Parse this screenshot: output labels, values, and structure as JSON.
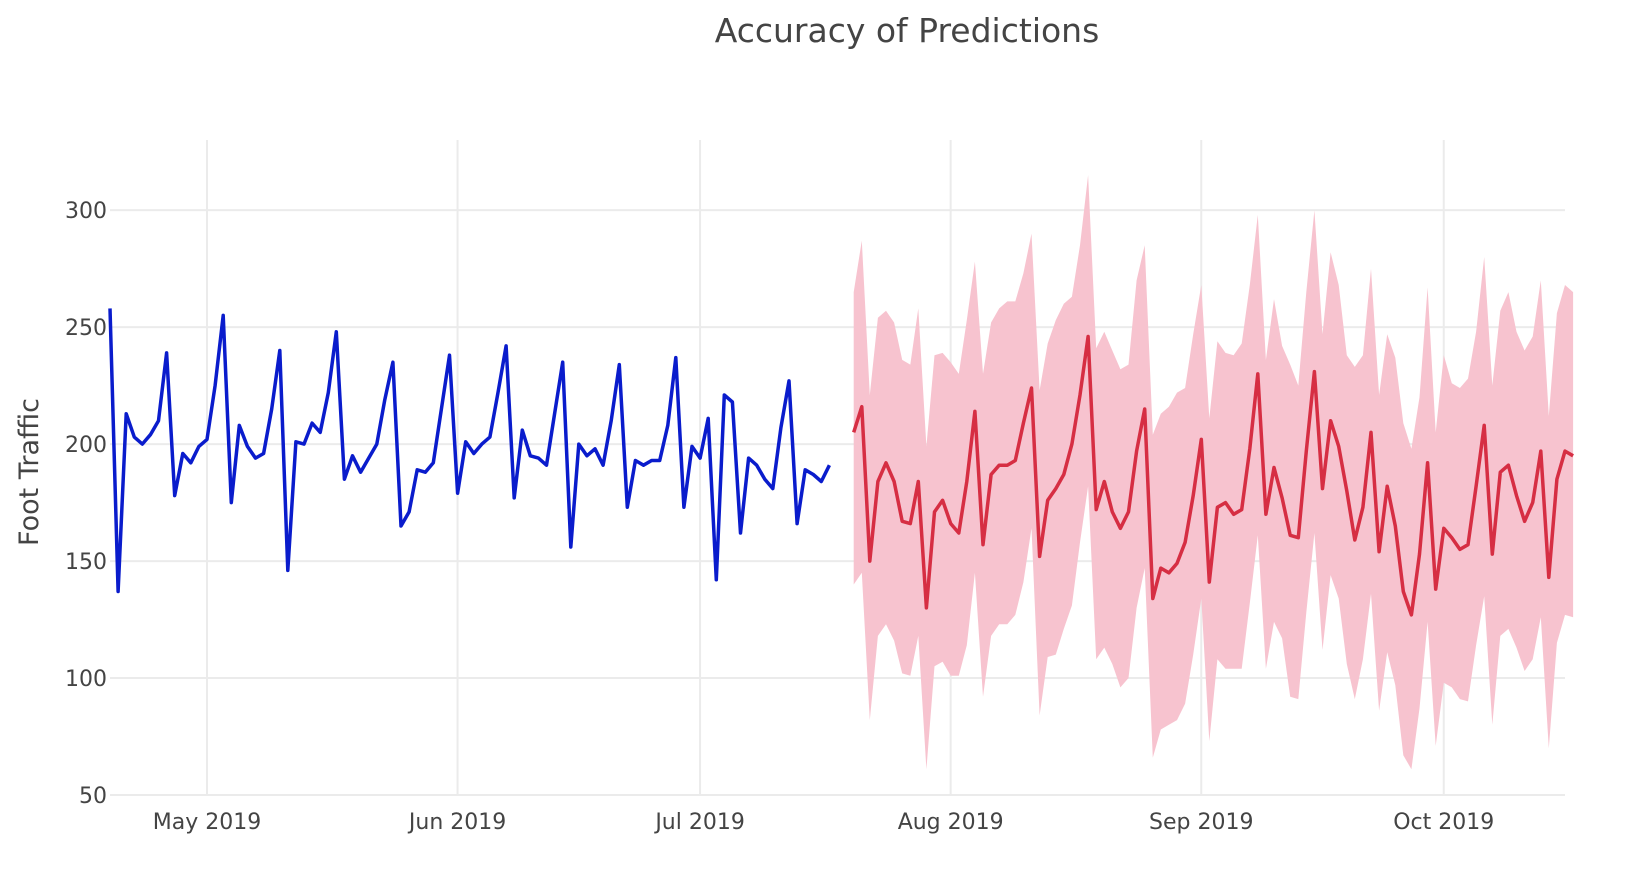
{
  "chart_data": {
    "type": "line",
    "title": "Accuracy of Predictions",
    "xlabel": "",
    "ylabel": "Foot Traffic",
    "xlim": [
      "2019-04-19",
      "2019-10-16"
    ],
    "ylim": [
      50,
      330
    ],
    "x_tick_labels": [
      {
        "date": "2019-05-01",
        "label": "May 2019"
      },
      {
        "date": "2019-06-01",
        "label": "Jun 2019"
      },
      {
        "date": "2019-07-01",
        "label": "Jul 2019"
      },
      {
        "date": "2019-08-01",
        "label": "Aug 2019"
      },
      {
        "date": "2019-09-01",
        "label": "Sep 2019"
      },
      {
        "date": "2019-10-01",
        "label": "Oct 2019"
      }
    ],
    "y_ticks": [
      50,
      100,
      150,
      200,
      250,
      300
    ],
    "grid": true,
    "legend": "none",
    "colors": {
      "actual": "#0a1ccc",
      "forecast": "#d62e43",
      "interval": "#f7c3cf"
    },
    "actual": {
      "start": "2019-04-19",
      "values": [
        258,
        137,
        213,
        203,
        200,
        204,
        210,
        239,
        178,
        196,
        192,
        199,
        202,
        225,
        255,
        175,
        208,
        199,
        194,
        196,
        215,
        240,
        146,
        201,
        200,
        209,
        205,
        222,
        248,
        185,
        195,
        188,
        194,
        200,
        219,
        235,
        165,
        171,
        189,
        188,
        192,
        215,
        238,
        179,
        201,
        196,
        200,
        203,
        222,
        242,
        177,
        206,
        195,
        194,
        191,
        213,
        235,
        156,
        200,
        195,
        198,
        191,
        210,
        234,
        173,
        193,
        191,
        193,
        193,
        208,
        237,
        173,
        199,
        194,
        211,
        142,
        221,
        218,
        162,
        194,
        191,
        185,
        181,
        207,
        227,
        166,
        189,
        187,
        184,
        191
      ]
    },
    "forecast": {
      "start": "2019-07-20",
      "values": [
        205,
        216,
        150,
        184,
        192,
        184,
        167,
        166,
        184,
        130,
        171,
        176,
        166,
        162,
        184,
        214,
        157,
        187,
        191,
        191,
        193,
        209,
        224,
        152,
        176,
        181,
        187,
        200,
        221,
        246,
        172,
        184,
        171,
        164,
        171,
        197,
        215,
        134,
        147,
        145,
        149,
        158,
        178,
        202,
        141,
        173,
        175,
        170,
        172,
        198,
        230,
        170,
        190,
        177,
        161,
        160,
        197,
        231,
        181,
        210,
        199,
        180,
        159,
        173,
        205,
        154,
        182,
        165,
        137,
        127,
        153,
        192,
        138,
        164,
        160,
        155,
        157,
        182,
        208,
        153,
        188,
        191,
        178,
        167,
        175,
        197,
        143,
        185,
        197,
        195
      ]
    },
    "interval": {
      "start": "2019-07-20",
      "upper": [
        265,
        287,
        221,
        254,
        257,
        252,
        236,
        234,
        258,
        199,
        238,
        239,
        235,
        230,
        253,
        278,
        230,
        252,
        258,
        261,
        261,
        273,
        290,
        223,
        243,
        253,
        260,
        263,
        285,
        315,
        241,
        248,
        240,
        232,
        234,
        270,
        285,
        204,
        213,
        216,
        222,
        224,
        247,
        268,
        211,
        244,
        239,
        238,
        243,
        268,
        298,
        236,
        262,
        242,
        234,
        225,
        265,
        300,
        247,
        282,
        268,
        238,
        233,
        238,
        275,
        221,
        247,
        237,
        209,
        198,
        220,
        267,
        205,
        238,
        226,
        224,
        228,
        248,
        280,
        225,
        257,
        265,
        248,
        240,
        246,
        270,
        212,
        256,
        268,
        265
      ],
      "lower": [
        140,
        145,
        82,
        118,
        123,
        116,
        102,
        101,
        118,
        61,
        105,
        107,
        101,
        101,
        114,
        145,
        92,
        118,
        123,
        123,
        127,
        141,
        164,
        84,
        109,
        110,
        121,
        131,
        158,
        182,
        108,
        113,
        106,
        96,
        100,
        130,
        147,
        66,
        78,
        80,
        82,
        89,
        110,
        134,
        73,
        108,
        104,
        104,
        104,
        132,
        161,
        104,
        124,
        117,
        92,
        91,
        128,
        162,
        112,
        144,
        134,
        106,
        91,
        108,
        136,
        86,
        111,
        97,
        67,
        61,
        87,
        124,
        71,
        98,
        96,
        91,
        90,
        114,
        135,
        80,
        118,
        121,
        113,
        103,
        108,
        126,
        70,
        115,
        127,
        126
      ]
    }
  }
}
